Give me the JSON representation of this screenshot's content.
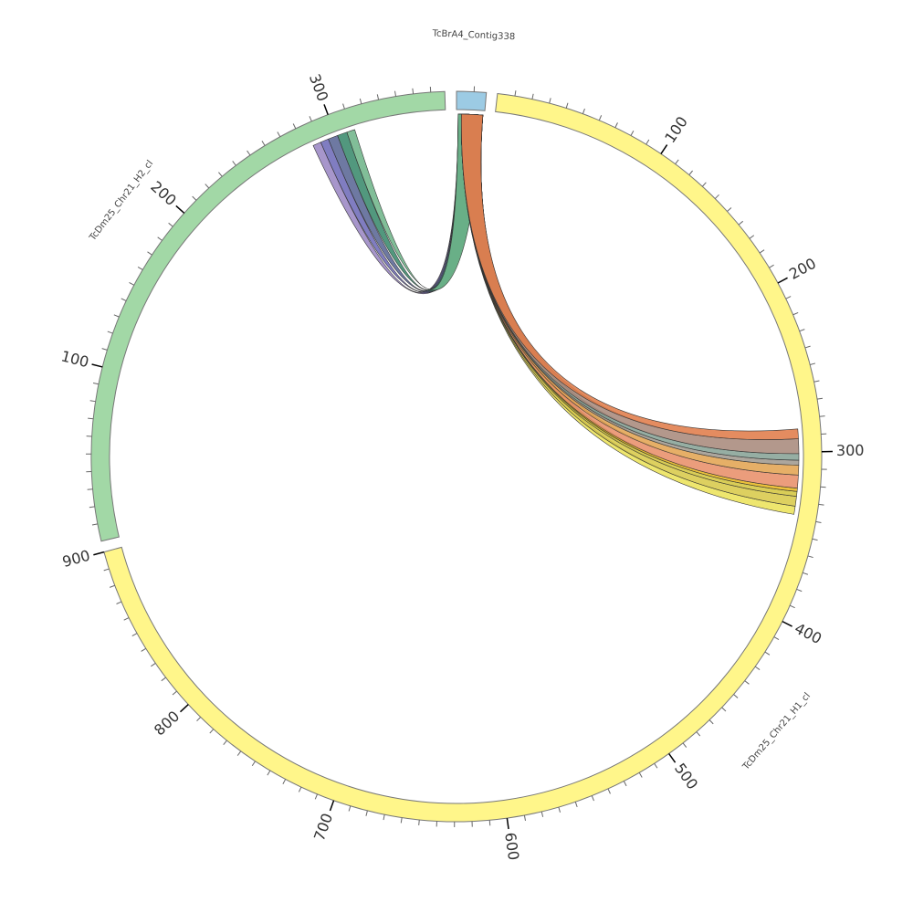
{
  "diagram": {
    "type": "circos",
    "units_per_minor_tick": 10,
    "units_per_major_tick": 100,
    "segments": [
      {
        "name": "TcBrA4_Contig338",
        "length": 17,
        "color": "#9ccbe4"
      },
      {
        "name": "TcDm25_Chr21_H1_cl",
        "length": 900,
        "color": "#fff68a"
      },
      {
        "name": "TcDm25_Chr21_H2_cl",
        "length": 368,
        "color": "#a2d8a6"
      }
    ],
    "links": [
      {
        "source": 0,
        "s": [
          1,
          16
        ],
        "target": 2,
        "t": [
          285,
          290
        ],
        "color": "#9b87c4"
      },
      {
        "source": 0,
        "s": [
          1,
          16
        ],
        "target": 2,
        "t": [
          290,
          295
        ],
        "color": "#6e6bb8"
      },
      {
        "source": 0,
        "s": [
          1,
          16
        ],
        "target": 2,
        "t": [
          295,
          301
        ],
        "color": "#5a6795"
      },
      {
        "source": 0,
        "s": [
          1,
          16
        ],
        "target": 2,
        "t": [
          301,
          307
        ],
        "color": "#3a8a6c"
      },
      {
        "source": 0,
        "s": [
          1,
          16
        ],
        "target": 2,
        "t": [
          307,
          312
        ],
        "color": "#6fb58a"
      },
      {
        "source": 0,
        "s": [
          3,
          16
        ],
        "target": 1,
        "t": [
          333,
          338
        ],
        "color": "#ece25a"
      },
      {
        "source": 0,
        "s": [
          3,
          16
        ],
        "target": 1,
        "t": [
          327,
          333
        ],
        "color": "#d8c94a"
      },
      {
        "source": 0,
        "s": [
          3,
          16
        ],
        "target": 1,
        "t": [
          324,
          327
        ],
        "color": "#d4c640"
      },
      {
        "source": 0,
        "s": [
          3,
          16
        ],
        "target": 1,
        "t": [
          322,
          324
        ],
        "color": "#e8b820"
      },
      {
        "source": 0,
        "s": [
          3,
          16
        ],
        "target": 1,
        "t": [
          314,
          322
        ],
        "color": "#e8906a"
      },
      {
        "source": 0,
        "s": [
          3,
          16
        ],
        "target": 1,
        "t": [
          308,
          314
        ],
        "color": "#e2a452"
      },
      {
        "source": 0,
        "s": [
          3,
          16
        ],
        "target": 1,
        "t": [
          305,
          308
        ],
        "color": "#a09a90"
      },
      {
        "source": 0,
        "s": [
          3,
          16
        ],
        "target": 1,
        "t": [
          301,
          305
        ],
        "color": "#88a396"
      },
      {
        "source": 0,
        "s": [
          3,
          16
        ],
        "target": 1,
        "t": [
          292,
          301
        ],
        "color": "#a88a7c"
      },
      {
        "source": 0,
        "s": [
          3,
          16
        ],
        "target": 1,
        "t": [
          286,
          292
        ],
        "color": "#e07c4a"
      }
    ]
  }
}
